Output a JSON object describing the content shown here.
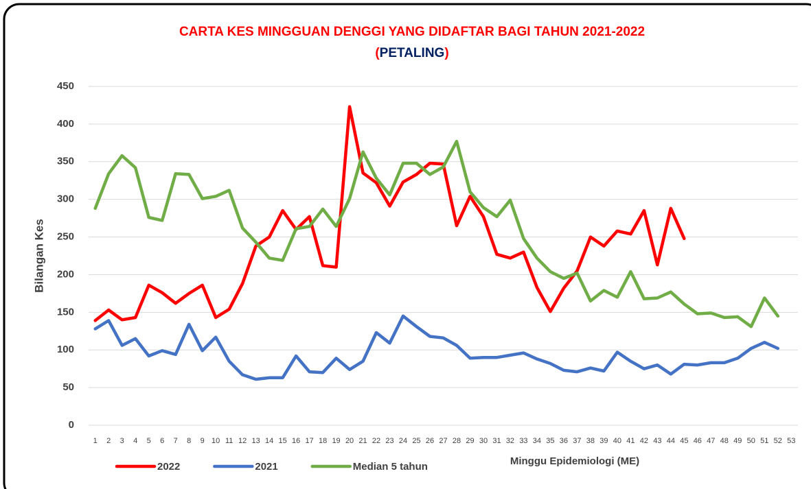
{
  "chart_data": {
    "type": "line",
    "title": "CARTA KES MINGGUAN DENGGI YANG DIDAFTAR BAGI TAHUN 2021-2022",
    "subtitle": "(PETALING)",
    "y_label": "Bilangan Kes",
    "x_label": "Minggu Epidemiologi (ME)",
    "categories": [
      "1",
      "2",
      "3",
      "4",
      "5",
      "6",
      "7",
      "8",
      "9",
      "10",
      "11",
      "12",
      "13",
      "14",
      "15",
      "16",
      "17",
      "18",
      "19",
      "20",
      "21",
      "22",
      "23",
      "24",
      "25",
      "26",
      "27",
      "28",
      "29",
      "30",
      "31",
      "32",
      "33",
      "34",
      "35",
      "36",
      "37",
      "38",
      "39",
      "40",
      "41",
      "42",
      "43",
      "44",
      "45",
      "46",
      "47",
      "48",
      "49",
      "50",
      "51",
      "52",
      "53"
    ],
    "series": [
      {
        "name": "2022",
        "color": "#ff0000",
        "values": [
          139,
          153,
          140,
          143,
          186,
          176,
          162,
          175,
          186,
          143,
          154,
          188,
          238,
          250,
          285,
          260,
          277,
          212,
          210,
          423,
          335,
          322,
          291,
          323,
          333,
          348,
          347,
          265,
          304,
          277,
          227,
          222,
          230,
          183,
          151,
          182,
          205,
          250,
          238,
          258,
          254,
          285,
          213,
          288,
          248,
          null,
          null,
          null,
          null,
          null,
          null,
          null,
          null
        ]
      },
      {
        "name": "2021",
        "color": "#4472c4",
        "values": [
          128,
          139,
          106,
          115,
          92,
          99,
          94,
          134,
          99,
          117,
          85,
          67,
          61,
          63,
          63,
          92,
          71,
          70,
          89,
          74,
          85,
          123,
          109,
          145,
          131,
          118,
          116,
          106,
          89,
          90,
          90,
          93,
          96,
          88,
          82,
          73,
          71,
          76,
          72,
          97,
          85,
          75,
          80,
          68,
          81,
          80,
          83,
          83,
          89,
          102,
          110,
          102,
          null
        ]
      },
      {
        "name": "Median 5 tahun",
        "color": "#70ad47",
        "values": [
          288,
          334,
          358,
          342,
          276,
          272,
          334,
          333,
          301,
          304,
          312,
          262,
          243,
          222,
          219,
          261,
          264,
          287,
          264,
          301,
          363,
          328,
          306,
          348,
          348,
          333,
          343,
          377,
          310,
          289,
          277,
          299,
          248,
          222,
          204,
          195,
          202,
          165,
          179,
          170,
          204,
          168,
          169,
          177,
          161,
          148,
          149,
          143,
          144,
          131,
          169,
          145,
          null
        ]
      }
    ],
    "ylim": [
      0,
      450
    ],
    "yticks": [
      0,
      50,
      100,
      150,
      200,
      250,
      300,
      350,
      400,
      450
    ],
    "grid": true,
    "legend": "bottom-left"
  }
}
